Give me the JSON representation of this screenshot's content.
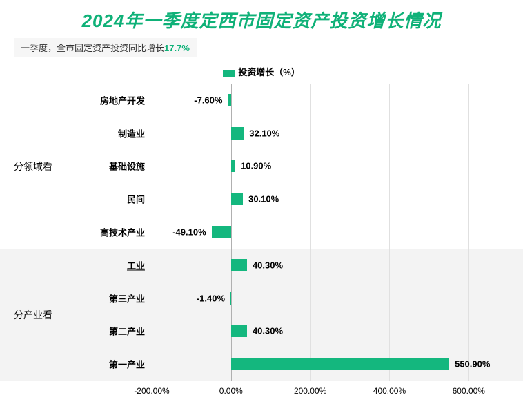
{
  "title": {
    "text": "2024年一季度定西市固定资产投资增长情况",
    "color": "#0fb178",
    "fontsize": 26
  },
  "subtitle": {
    "prefix": "一季度，全市固定资产投资同比增长",
    "accent": "17.7%",
    "bg": "#f6f6f6",
    "accent_color": "#0fb178",
    "text_color": "#333333"
  },
  "legend": {
    "label": "投资增长（%）",
    "color": "#14b77e"
  },
  "chart": {
    "type": "horizontal-bar",
    "xmin": -200,
    "xmax": 650,
    "xticks": [
      -200,
      0,
      200,
      400,
      600
    ],
    "xtick_labels": [
      "-200.00%",
      "0.00%",
      "200.00%",
      "400.00%",
      "600.00%"
    ],
    "bar_color": "#14b77e",
    "grid_color": "#e0e0e0",
    "zero_color": "#b0b0b0",
    "text_color": "#222222",
    "groups": [
      {
        "label": "分领域看",
        "shaded": false,
        "rows": [
          {
            "name": "房地产开发",
            "value": -7.6,
            "label": "-7.60%"
          },
          {
            "name": "制造业",
            "value": 32.1,
            "label": "32.10%"
          },
          {
            "name": "基础设施",
            "value": 10.9,
            "label": "10.90%"
          },
          {
            "name": "民间",
            "value": 30.1,
            "label": "30.10%"
          },
          {
            "name": "高技术产业",
            "value": -49.1,
            "label": "-49.10%"
          }
        ]
      },
      {
        "label": "分产业看",
        "shaded": true,
        "underline_first": true,
        "rows": [
          {
            "name": "工业",
            "value": 40.3,
            "label": "40.30%"
          },
          {
            "name": "第三产业",
            "value": -1.4,
            "label": "-1.40%"
          },
          {
            "name": "第二产业",
            "value": 40.3,
            "label": "40.30%"
          },
          {
            "name": "第一产业",
            "value": 550.9,
            "label": "550.90%"
          }
        ]
      }
    ]
  }
}
